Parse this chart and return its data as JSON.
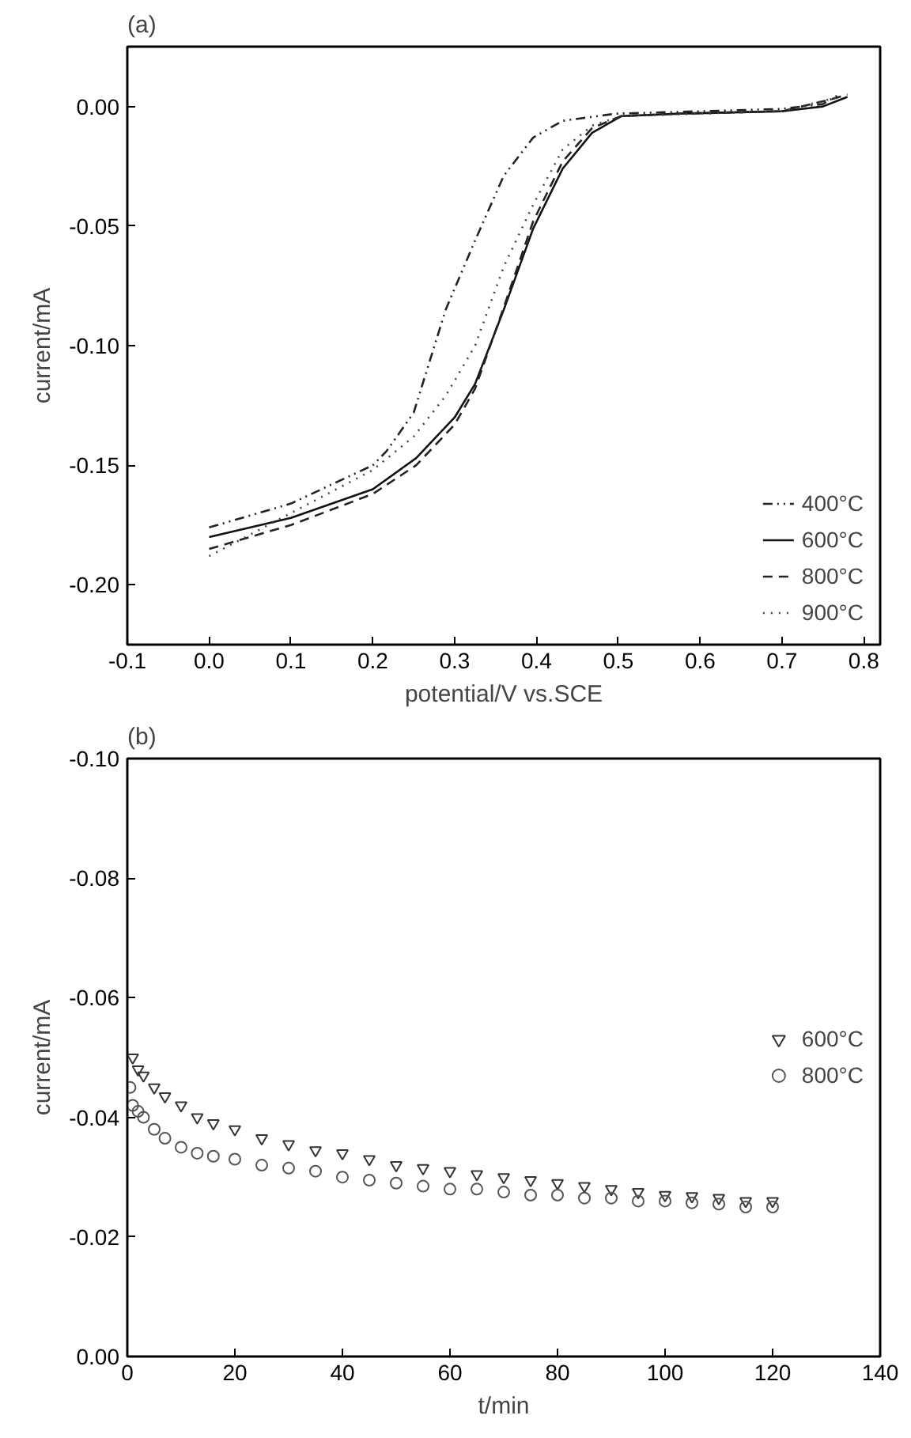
{
  "chart_data": [
    {
      "type": "line",
      "title": "(a)",
      "xlabel": "potential/V vs.SCE",
      "ylabel": "current/mA",
      "xlim": [
        -0.1,
        0.82
      ],
      "ylim": [
        -0.225,
        0.025
      ],
      "xticks": [
        -0.1,
        {
          "value": 0,
          "label": "0.0"
        },
        0.1,
        0.2,
        0.3,
        0.4,
        0.5,
        0.6,
        0.7,
        0.8
      ],
      "yticks": [
        {
          "value": 0,
          "label": "0.00"
        },
        {
          "value": -0.05,
          "label": "-0.05"
        },
        {
          "value": -0.1,
          "label": "-0.10"
        },
        {
          "value": -0.15,
          "label": "-0.15"
        },
        {
          "value": -0.2,
          "label": "-0.20"
        }
      ],
      "legend": "bottom right",
      "grid": false,
      "marker": "none",
      "series": [
        {
          "name": "400°C",
          "color": "#222222",
          "line_style": "dashdot",
          "x": [
            0,
            0.1,
            0.2,
            0.217,
            0.25,
            0.289,
            0.325,
            0.36,
            0.396,
            0.432,
            0.497,
            0.6,
            0.7,
            0.75,
            0.77
          ],
          "values": [
            -0.176,
            -0.166,
            -0.15,
            -0.144,
            -0.128,
            -0.085,
            -0.056,
            -0.029,
            -0.013,
            -0.006,
            -0.003,
            -0.002,
            -0.001,
            0.001,
            0.005
          ]
        },
        {
          "name": "600°C",
          "color": "#111111",
          "line_style": "solid",
          "x": [
            0,
            0.1,
            0.2,
            0.253,
            0.3,
            0.325,
            0.36,
            0.396,
            0.432,
            0.468,
            0.504,
            0.576,
            0.7,
            0.75,
            0.78
          ],
          "values": [
            -0.18,
            -0.172,
            -0.16,
            -0.147,
            -0.13,
            -0.116,
            -0.085,
            -0.051,
            -0.026,
            -0.011,
            -0.004,
            -0.003,
            -0.002,
            0.0,
            0.004
          ]
        },
        {
          "name": "800°C",
          "color": "#222222",
          "line_style": "dashed",
          "x": [
            0,
            0.1,
            0.2,
            0.253,
            0.3,
            0.325,
            0.36,
            0.396,
            0.432,
            0.468,
            0.504,
            0.576,
            0.7,
            0.76,
            0.78
          ],
          "values": [
            -0.185,
            -0.175,
            -0.162,
            -0.15,
            -0.133,
            -0.118,
            -0.084,
            -0.048,
            -0.023,
            -0.009,
            -0.004,
            -0.003,
            -0.002,
            0.003,
            0.005
          ]
        },
        {
          "name": "900°C",
          "color": "#444444",
          "line_style": "dotted",
          "x": [
            0,
            0.1,
            0.2,
            0.25,
            0.289,
            0.325,
            0.36,
            0.396,
            0.432,
            0.468,
            0.504,
            0.6,
            0.7,
            0.77
          ],
          "values": [
            -0.188,
            -0.17,
            -0.152,
            -0.138,
            -0.121,
            -0.1,
            -0.067,
            -0.041,
            -0.018,
            -0.008,
            -0.004,
            -0.003,
            -0.002,
            0.004
          ]
        }
      ]
    },
    {
      "type": "scatter",
      "title": "(b)",
      "xlabel": "t/min",
      "ylabel": "current/mA",
      "xlim": [
        0,
        140
      ],
      "ylim": [
        0.0,
        -0.1
      ],
      "xticks": [
        0,
        20,
        40,
        60,
        80,
        100,
        120,
        140
      ],
      "yticks": [
        {
          "value": 0,
          "label": "0.00"
        },
        {
          "value": -0.02,
          "label": "-0.02"
        },
        {
          "value": -0.04,
          "label": "-0.04"
        },
        {
          "value": -0.06,
          "label": "-0.06"
        },
        {
          "value": -0.08,
          "label": "-0.08"
        },
        {
          "value": -0.1,
          "label": "-0.10"
        }
      ],
      "legend": "right",
      "grid": false,
      "series": [
        {
          "name": "600°C",
          "color": "#333333",
          "marker": "triangle",
          "x": [
            1,
            2,
            3,
            5,
            7,
            10,
            13,
            16,
            20,
            25,
            30,
            35,
            40,
            45,
            50,
            55,
            60,
            65,
            70,
            75,
            80,
            85,
            90,
            95,
            100,
            105,
            110,
            115,
            120
          ],
          "values": [
            -0.05,
            -0.048,
            -0.047,
            -0.045,
            -0.0435,
            -0.042,
            -0.04,
            -0.039,
            -0.038,
            -0.0365,
            -0.0355,
            -0.0345,
            -0.034,
            -0.033,
            -0.032,
            -0.0315,
            -0.031,
            -0.0305,
            -0.03,
            -0.0295,
            -0.029,
            -0.0285,
            -0.028,
            -0.0275,
            -0.027,
            -0.0268,
            -0.0265,
            -0.026,
            -0.026
          ]
        },
        {
          "name": "800°C",
          "color": "#555555",
          "marker": "circle",
          "x": [
            0.5,
            1,
            2,
            3,
            5,
            7,
            10,
            13,
            16,
            20,
            25,
            30,
            35,
            40,
            45,
            50,
            55,
            60,
            65,
            70,
            75,
            80,
            85,
            90,
            95,
            100,
            105,
            110,
            115,
            120
          ],
          "values": [
            -0.045,
            -0.042,
            -0.041,
            -0.04,
            -0.038,
            -0.0365,
            -0.035,
            -0.034,
            -0.0335,
            -0.033,
            -0.032,
            -0.0315,
            -0.031,
            -0.03,
            -0.0295,
            -0.029,
            -0.0285,
            -0.028,
            -0.028,
            -0.0275,
            -0.027,
            -0.027,
            -0.0265,
            -0.0265,
            -0.026,
            -0.026,
            -0.0257,
            -0.0255,
            -0.025,
            -0.025
          ]
        }
      ]
    }
  ]
}
